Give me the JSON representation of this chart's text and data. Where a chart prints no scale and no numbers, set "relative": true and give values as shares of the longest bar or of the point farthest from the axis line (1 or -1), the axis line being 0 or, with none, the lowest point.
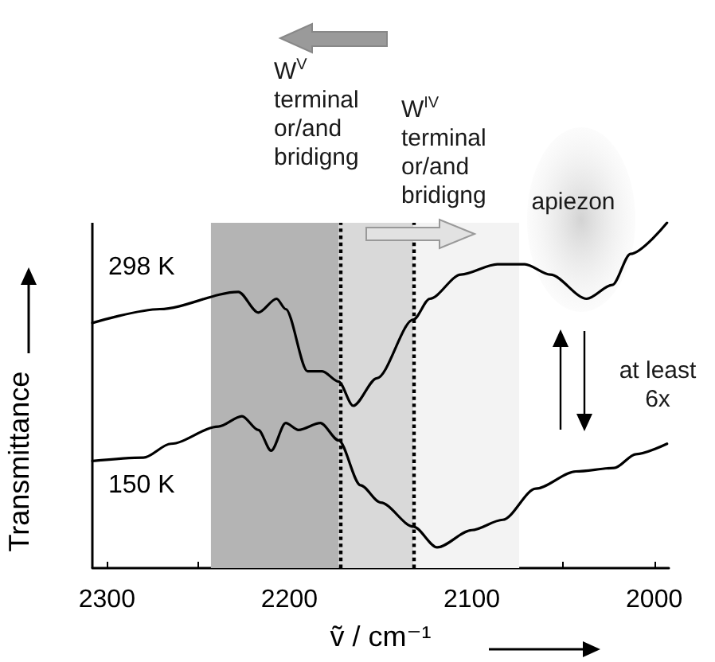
{
  "chart_data": {
    "type": "line",
    "relative": true,
    "xlabel": "ṽ / cm⁻¹",
    "ylabel": "Transmittance",
    "xlim": [
      2308,
      1992
    ],
    "xticks": [
      2300,
      {
        "value": 2250,
        "label": null
      },
      2200,
      {
        "value": 2150,
        "label": null
      },
      2100,
      {
        "value": 2050,
        "label": null
      },
      2000
    ],
    "series": [
      {
        "name": "298 K",
        "color": "#000000",
        "x": [
          2308,
          2271,
          2228,
          2217,
          2207,
          2202,
          2190,
          2182,
          2173,
          2165,
          2152,
          2132,
          2123,
          2106,
          2086,
          2071,
          2057,
          2037,
          2023,
          2013,
          1993
        ],
        "values": [
          0.71,
          0.75,
          0.8,
          0.74,
          0.78,
          0.75,
          0.57,
          0.57,
          0.54,
          0.47,
          0.55,
          0.72,
          0.78,
          0.85,
          0.88,
          0.88,
          0.85,
          0.78,
          0.82,
          0.91,
          1.0
        ]
      },
      {
        "name": "150 K",
        "color": "#000000",
        "x": [
          2308,
          2280,
          2265,
          2239,
          2226,
          2217,
          2210,
          2202,
          2195,
          2183,
          2173,
          2161,
          2150,
          2132,
          2119,
          2100,
          2083,
          2065,
          2043,
          2022,
          2010,
          1993
        ],
        "values": [
          0.31,
          0.32,
          0.36,
          0.41,
          0.44,
          0.4,
          0.34,
          0.42,
          0.4,
          0.42,
          0.37,
          0.24,
          0.19,
          0.12,
          0.06,
          0.11,
          0.14,
          0.23,
          0.28,
          0.29,
          0.33,
          0.36
        ]
      }
    ],
    "bands": [
      {
        "axis": "x",
        "from": 2243,
        "to": 2173,
        "color": "#b4b4b4"
      },
      {
        "axis": "x",
        "from": 2173,
        "to": 2132,
        "color": "#d9d9d9"
      },
      {
        "axis": "x",
        "from": 2132,
        "to": 2074,
        "color": "#f3f3f3"
      }
    ],
    "ref_lines": [
      {
        "axis": "x",
        "value": 2172,
        "line_style": "dotted"
      },
      {
        "axis": "x",
        "value": 2132,
        "line_style": "dotted"
      }
    ],
    "annotations": [
      "W$^{V}$\nterminal\nor/and\nbridigng",
      "W$^{IV}$\nterminal\nor/and\nbridigng",
      "apiezon",
      "at least\n6x"
    ],
    "legend": false,
    "marker": "none",
    "line_style": "solid",
    "grid": false
  }
}
